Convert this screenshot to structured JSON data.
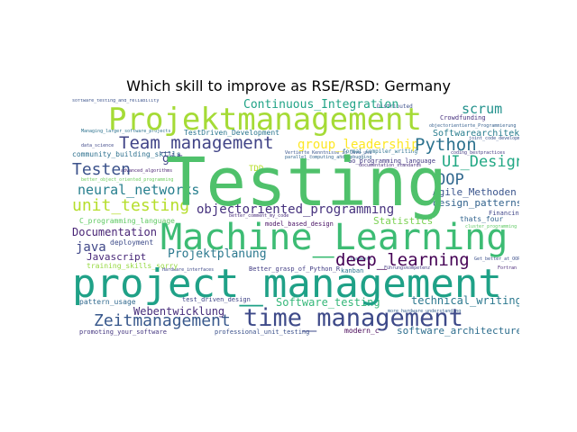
{
  "title": "Which skill to improve as RSE/RSD: Germany",
  "words": {
    "testing": {
      "text": "Testing",
      "color": "#4fc16b"
    },
    "project_management": {
      "text": "project_management",
      "color": "#1fa187"
    },
    "machine_learning": {
      "text": "Machine_Learning",
      "color": "#3dbc74"
    },
    "projektmanagement": {
      "text": "Projektmanagement",
      "color": "#a5db36"
    },
    "time_management": {
      "text": "time_management",
      "color": "#3e4a89"
    },
    "team_management": {
      "text": "Team_management",
      "color": "#414487"
    },
    "unit_testing": {
      "text": "unit_testing",
      "color": "#b5de2b"
    },
    "objectoriented_programming": {
      "text": "objectoriented_programming",
      "color": "#46327e"
    },
    "deep_learning": {
      "text": "deep_learning",
      "color": "#440154"
    },
    "zeitmanagement": {
      "text": "Zeitmanagement",
      "color": "#38588c"
    },
    "testen": {
      "text": "Testen",
      "color": "#3b528b"
    },
    "python": {
      "text": "Python",
      "color": "#2c728e"
    },
    "ui_design": {
      "text": "UI_Design",
      "color": "#22a884"
    },
    "oop": {
      "text": "OOP",
      "color": "#31688e"
    },
    "scrum": {
      "text": "scrum",
      "color": "#21918c"
    },
    "group_leadership": {
      "text": "group_leadership",
      "color": "#fde725"
    },
    "continuous_integration": {
      "text": "Continuous_Integration",
      "color": "#20a386"
    },
    "neural_networks": {
      "text": "neural_networks",
      "color": "#277f8e"
    },
    "projektplanung": {
      "text": "Projektplanung",
      "color": "#2a788e"
    },
    "software_testing": {
      "text": "Software_testing",
      "color": "#35b779"
    },
    "webentwicklung": {
      "text": "Webentwicklung",
      "color": "#472d7b"
    },
    "documentation": {
      "text": "Documentation",
      "color": "#482475"
    },
    "java": {
      "text": "java",
      "color": "#3f4788"
    },
    "statistics": {
      "text": "Statistics",
      "color": "#7ad151"
    },
    "design_patterns": {
      "text": "design_patterns",
      "color": "#33638d"
    },
    "agile_methoden": {
      "text": "Agile_Methoden",
      "color": "#3a548c"
    },
    "software_architecture": {
      "text": "software_architecture",
      "color": "#2e6e8e"
    },
    "technical_writing": {
      "text": "technical_writing",
      "color": "#2a778e"
    },
    "git": {
      "text": "git",
      "color": "#414487"
    },
    "javascript": {
      "text": "Javascript",
      "color": "#482878"
    },
    "softwarearchitektur": {
      "text": "Softwarearchitektur",
      "color": "#287d8e"
    },
    "deployment": {
      "text": "deployment",
      "color": "#3e4c8a"
    },
    "c_programming_language": {
      "text": "C_programming_language",
      "color": "#5ec962"
    },
    "community_building_skills": {
      "text": "community_building_skills",
      "color": "#2d708e"
    },
    "testdriven_development": {
      "text": "TestDriven_Development",
      "color": "#2b758e"
    },
    "tdd": {
      "text": "TDD",
      "color": "#b8de29"
    },
    "go_programming_language": {
      "text": "Go_programming_language",
      "color": "#443a83"
    },
    "training_skills_sorry": {
      "text": "training_skills_sorry",
      "color": "#95d840"
    },
    "pattern_usage": {
      "text": "pattern_usage",
      "color": "#30698e"
    },
    "better_grasp_of_python_r": {
      "text": "Better_grasp_of_Python_R",
      "color": "#433e85"
    },
    "promoting_your_software": {
      "text": "promoting_your_software",
      "color": "#453781"
    },
    "professional_unit_testing": {
      "text": "professional_unit_testing",
      "color": "#3b518b"
    },
    "modern_c": {
      "text": "modern_c",
      "color": "#440154"
    },
    "test_driven_design": {
      "text": "test_driven_design",
      "color": "#404588"
    },
    "model_based_design": {
      "text": "model_based_design",
      "color": "#471063"
    },
    "financing": {
      "text": "Financing",
      "color": "#404688"
    },
    "thats_four": {
      "text": "thats_four",
      "color": "#32648e"
    },
    "kanban": {
      "text": "kanban",
      "color": "#2c718e"
    },
    "crowdfunding": {
      "text": "Crowdfunding",
      "color": "#46307e"
    },
    "distributed": {
      "text": "Distributed",
      "color": "#3c508b"
    },
    "advanced_algorithms": {
      "text": "advanced_algorithms",
      "color": "#481f70"
    },
    "software_testing_and_reliability": {
      "text": "software_testing_and_reliability",
      "color": "#3b528b"
    },
    "managing_larger_software_projects": {
      "text": "Managing_larger_software_projects",
      "color": "#2c728e"
    },
    "data_science": {
      "text": "data_science",
      "color": "#3f4889"
    },
    "better_object_oriented_programming": {
      "text": "better_object_oriented_programming",
      "color": "#6ccd5a"
    },
    "objectoriented_programming_small": {
      "text": "objectorientierte_Programmierung",
      "color": "#355f8d"
    },
    "joint_code_development": {
      "text": "joint_code_development",
      "color": "#3b528b"
    },
    "coding_bestpractices": {
      "text": "coding_bestpractices",
      "color": "#443983"
    },
    "formal_compiler_writing": {
      "text": "formal_compiler_writing",
      "color": "#2d708e"
    },
    "documentation_standards": {
      "text": "documentation_standards",
      "color": "#472c7a"
    },
    "parallel_computing_and_debugging": {
      "text": "parallel_computing_and_debugging",
      "color": "#32658e"
    },
    "hardware_interfaces": {
      "text": "Hardware_interfaces",
      "color": "#3e4989"
    },
    "fuhrungskompetenz": {
      "text": "Führungskompetenz",
      "color": "#443a83"
    },
    "get_better_at_oop": {
      "text": "Get_better_at_OOP",
      "color": "#3c4f8a"
    },
    "fortran": {
      "text": "Fortran",
      "color": "#482677"
    },
    "teamwork": {
      "text": "teamwork",
      "color": "#2e6f8e"
    },
    "more_hardware_understanding": {
      "text": "more_hardware_understanding",
      "color": "#35608d"
    },
    "better_comment_my_code": {
      "text": "better_comment_my_code",
      "color": "#472a7a"
    },
    "cluster_programming": {
      "text": "cluster_programming",
      "color": "#5ec962"
    },
    "vertiefte_kenntnisse": {
      "text": "Vertiefte_Kenntnisse_in_Java_und",
      "color": "#39558c"
    }
  }
}
